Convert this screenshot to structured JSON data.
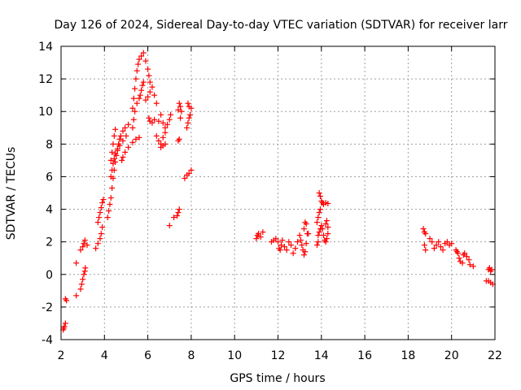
{
  "chart_data": {
    "type": "scatter",
    "title": "Day 126 of 2024, Sidereal Day-to-day VTEC variation (SDTVAR) for receiver larr",
    "xlabel": "GPS time / hours",
    "ylabel": "SDTVAR / TECUs",
    "xlim": [
      2,
      22
    ],
    "ylim": [
      -4,
      14
    ],
    "xticks": [
      "2",
      "4",
      "6",
      "8",
      "10",
      "12",
      "14",
      "16",
      "18",
      "20",
      "22"
    ],
    "yticks": [
      "-4",
      "-2",
      "0",
      "2",
      "4",
      "6",
      "8",
      "10",
      "12",
      "14"
    ],
    "grid": true,
    "marker": "+",
    "color": "#ff0000",
    "series": [
      {
        "name": "SDTVAR",
        "points": [
          [
            2.1,
            -3.4
          ],
          [
            2.12,
            -3.3
          ],
          [
            2.15,
            -3.2
          ],
          [
            2.2,
            -3.0
          ],
          [
            2.2,
            -1.5
          ],
          [
            2.25,
            -1.6
          ],
          [
            2.7,
            -1.3
          ],
          [
            2.7,
            0.7
          ],
          [
            2.9,
            -0.9
          ],
          [
            2.95,
            -0.6
          ],
          [
            3.0,
            -0.3
          ],
          [
            3.05,
            0.0
          ],
          [
            3.1,
            0.2
          ],
          [
            3.12,
            0.4
          ],
          [
            2.9,
            1.5
          ],
          [
            3.0,
            1.7
          ],
          [
            3.05,
            1.9
          ],
          [
            3.1,
            2.1
          ],
          [
            3.2,
            1.8
          ],
          [
            3.6,
            1.6
          ],
          [
            3.7,
            1.9
          ],
          [
            3.8,
            2.2
          ],
          [
            3.85,
            2.5
          ],
          [
            3.9,
            2.9
          ],
          [
            3.7,
            3.2
          ],
          [
            3.75,
            3.5
          ],
          [
            3.8,
            3.8
          ],
          [
            3.85,
            4.1
          ],
          [
            3.9,
            4.4
          ],
          [
            3.95,
            4.6
          ],
          [
            4.15,
            3.5
          ],
          [
            4.2,
            3.9
          ],
          [
            4.25,
            4.3
          ],
          [
            4.3,
            4.7
          ],
          [
            4.35,
            5.3
          ],
          [
            4.4,
            5.9
          ],
          [
            4.45,
            6.4
          ],
          [
            4.5,
            6.9
          ],
          [
            4.55,
            7.3
          ],
          [
            4.6,
            7.7
          ],
          [
            4.65,
            8.0
          ],
          [
            4.7,
            8.3
          ],
          [
            4.75,
            8.5
          ],
          [
            4.85,
            8.8
          ],
          [
            4.95,
            9.0
          ],
          [
            5.1,
            9.2
          ],
          [
            4.3,
            6.0
          ],
          [
            4.35,
            6.4
          ],
          [
            4.4,
            6.8
          ],
          [
            4.45,
            7.1
          ],
          [
            4.5,
            7.4
          ],
          [
            4.6,
            7.6
          ],
          [
            4.7,
            7.9
          ],
          [
            4.85,
            8.2
          ],
          [
            5.0,
            8.5
          ],
          [
            4.3,
            7.0
          ],
          [
            4.35,
            7.5
          ],
          [
            4.4,
            8.0
          ],
          [
            4.45,
            8.5
          ],
          [
            4.5,
            8.9
          ],
          [
            4.8,
            7.0
          ],
          [
            4.85,
            7.2
          ],
          [
            4.95,
            7.5
          ],
          [
            5.1,
            7.8
          ],
          [
            5.3,
            8.1
          ],
          [
            5.45,
            8.3
          ],
          [
            5.6,
            8.4
          ],
          [
            5.3,
            9.0
          ],
          [
            5.35,
            9.5
          ],
          [
            5.4,
            10.0
          ],
          [
            5.5,
            10.5
          ],
          [
            5.6,
            10.8
          ],
          [
            5.65,
            11.0
          ],
          [
            5.7,
            11.3
          ],
          [
            5.75,
            11.6
          ],
          [
            5.8,
            11.8
          ],
          [
            5.3,
            10.2
          ],
          [
            5.35,
            10.8
          ],
          [
            5.4,
            11.4
          ],
          [
            5.45,
            12.0
          ],
          [
            5.5,
            12.5
          ],
          [
            5.55,
            12.9
          ],
          [
            5.6,
            13.2
          ],
          [
            5.7,
            13.4
          ],
          [
            5.8,
            13.6
          ],
          [
            5.9,
            13.1
          ],
          [
            6.0,
            12.6
          ],
          [
            6.05,
            12.2
          ],
          [
            6.1,
            11.8
          ],
          [
            5.9,
            10.7
          ],
          [
            6.0,
            10.9
          ],
          [
            6.1,
            11.2
          ],
          [
            6.2,
            11.5
          ],
          [
            6.3,
            11.0
          ],
          [
            6.4,
            10.5
          ],
          [
            6.05,
            9.6
          ],
          [
            6.1,
            9.4
          ],
          [
            6.2,
            9.3
          ],
          [
            6.3,
            9.5
          ],
          [
            6.4,
            8.5
          ],
          [
            6.5,
            8.2
          ],
          [
            6.6,
            8.0
          ],
          [
            6.7,
            8.4
          ],
          [
            6.8,
            8.7
          ],
          [
            6.9,
            9.2
          ],
          [
            7.0,
            9.5
          ],
          [
            7.05,
            9.8
          ],
          [
            6.5,
            9.4
          ],
          [
            6.6,
            9.8
          ],
          [
            6.7,
            9.3
          ],
          [
            6.8,
            9.0
          ],
          [
            6.6,
            7.8
          ],
          [
            6.7,
            7.9
          ],
          [
            6.8,
            8.0
          ],
          [
            7.4,
            10.1
          ],
          [
            7.45,
            10.5
          ],
          [
            7.5,
            10.3
          ],
          [
            7.55,
            10.0
          ],
          [
            7.5,
            9.6
          ],
          [
            7.4,
            8.2
          ],
          [
            7.45,
            8.3
          ],
          [
            7.8,
            9.0
          ],
          [
            7.85,
            9.3
          ],
          [
            7.9,
            9.6
          ],
          [
            7.95,
            9.8
          ],
          [
            8.0,
            10.2
          ],
          [
            7.85,
            10.5
          ],
          [
            7.9,
            10.3
          ],
          [
            7.7,
            5.9
          ],
          [
            7.8,
            6.1
          ],
          [
            7.9,
            6.2
          ],
          [
            8.0,
            6.4
          ],
          [
            7.35,
            3.6
          ],
          [
            7.4,
            3.8
          ],
          [
            7.45,
            4.0
          ],
          [
            7.2,
            3.5
          ],
          [
            7.0,
            3.0
          ],
          [
            11.0,
            2.2
          ],
          [
            11.05,
            2.4
          ],
          [
            11.1,
            2.5
          ],
          [
            11.2,
            2.3
          ],
          [
            11.3,
            2.6
          ],
          [
            11.7,
            2.0
          ],
          [
            11.8,
            2.1
          ],
          [
            11.9,
            2.2
          ],
          [
            12.0,
            2.0
          ],
          [
            12.05,
            1.6
          ],
          [
            12.1,
            1.5
          ],
          [
            12.15,
            1.8
          ],
          [
            12.2,
            2.1
          ],
          [
            12.3,
            1.7
          ],
          [
            12.4,
            1.5
          ],
          [
            12.5,
            2.0
          ],
          [
            12.6,
            1.8
          ],
          [
            12.7,
            1.3
          ],
          [
            12.8,
            1.6
          ],
          [
            12.9,
            2.0
          ],
          [
            13.0,
            2.4
          ],
          [
            13.05,
            2.1
          ],
          [
            13.1,
            1.8
          ],
          [
            13.15,
            1.5
          ],
          [
            13.2,
            1.2
          ],
          [
            13.25,
            1.4
          ],
          [
            13.3,
            1.9
          ],
          [
            13.35,
            2.5
          ],
          [
            13.2,
            2.8
          ],
          [
            13.25,
            3.2
          ],
          [
            13.3,
            3.1
          ],
          [
            13.4,
            2.5
          ],
          [
            13.8,
            3.2
          ],
          [
            13.85,
            3.5
          ],
          [
            13.9,
            3.8
          ],
          [
            13.95,
            4.0
          ],
          [
            14.0,
            4.5
          ],
          [
            13.9,
            5.0
          ],
          [
            13.95,
            4.8
          ],
          [
            14.05,
            4.4
          ],
          [
            14.1,
            4.3
          ],
          [
            14.2,
            4.4
          ],
          [
            14.3,
            4.35
          ],
          [
            13.85,
            2.4
          ],
          [
            13.9,
            2.6
          ],
          [
            13.95,
            2.8
          ],
          [
            14.0,
            3.0
          ],
          [
            14.05,
            2.8
          ],
          [
            14.1,
            2.4
          ],
          [
            14.15,
            2.1
          ],
          [
            14.2,
            2.0
          ],
          [
            14.25,
            2.2
          ],
          [
            14.3,
            2.5
          ],
          [
            14.3,
            2.9
          ],
          [
            14.25,
            3.3
          ],
          [
            14.2,
            3.1
          ],
          [
            13.8,
            1.8
          ],
          [
            13.85,
            2.0
          ],
          [
            18.7,
            2.8
          ],
          [
            18.75,
            2.6
          ],
          [
            18.8,
            2.5
          ],
          [
            18.75,
            1.8
          ],
          [
            18.8,
            1.5
          ],
          [
            19.0,
            2.2
          ],
          [
            19.1,
            2.0
          ],
          [
            19.2,
            1.6
          ],
          [
            19.3,
            1.8
          ],
          [
            19.4,
            2.0
          ],
          [
            19.5,
            1.7
          ],
          [
            19.6,
            1.5
          ],
          [
            19.7,
            1.9
          ],
          [
            19.8,
            2.0
          ],
          [
            19.9,
            1.8
          ],
          [
            20.0,
            1.9
          ],
          [
            20.2,
            1.5
          ],
          [
            20.25,
            1.4
          ],
          [
            20.3,
            1.3
          ],
          [
            20.35,
            1.0
          ],
          [
            20.4,
            0.8
          ],
          [
            20.5,
            0.7
          ],
          [
            20.55,
            1.2
          ],
          [
            20.6,
            1.3
          ],
          [
            20.7,
            1.1
          ],
          [
            20.8,
            0.9
          ],
          [
            20.85,
            0.6
          ],
          [
            21.0,
            0.5
          ],
          [
            21.6,
            -0.4
          ],
          [
            21.7,
            0.3
          ],
          [
            21.75,
            0.4
          ],
          [
            21.8,
            0.2
          ],
          [
            21.85,
            0.3
          ],
          [
            21.7,
            -0.4
          ],
          [
            21.8,
            -0.5
          ],
          [
            21.9,
            -0.6
          ]
        ]
      }
    ]
  }
}
